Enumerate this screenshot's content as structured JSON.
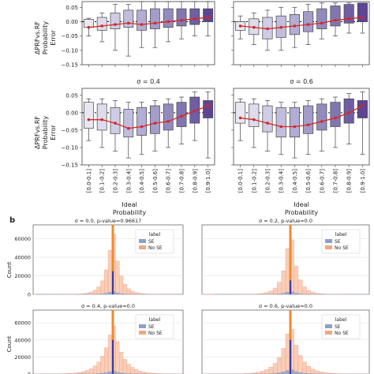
{
  "panel_a": {
    "ylabel_lines": [
      "ΔPRFvs.RF",
      "Probability",
      "Error"
    ],
    "xlabel_lines": [
      "Ideal",
      "Probability"
    ],
    "y_ticks": [
      "0.05",
      "0.00",
      "−0.05",
      "−0.10",
      "−0.15"
    ],
    "categories": [
      "[0.0-0.1]",
      "[0.1-0.2]",
      "[0.2-0.3]",
      "[0.3-0.4]",
      "[0.4-0.5]",
      "[0.5-0.6]",
      "[0.6-0.7]",
      "[0.7-0.8]",
      "[0.8-0.9]",
      "[0.9-1.0]"
    ],
    "box_colors": [
      "#e9e7f2",
      "#dddbec",
      "#cfcce5",
      "#c1bedd",
      "#b2add4",
      "#a39dc9",
      "#938bbe",
      "#8276b1",
      "#705ea3",
      "#5e4594"
    ],
    "median_color": "#d62728"
  },
  "panel_b": {
    "label": "b",
    "ylabel": "Count",
    "y_ticks": [
      "60000",
      "40000",
      "20000",
      "0"
    ],
    "legend": {
      "title": "label",
      "entries": [
        "SE",
        "No SE"
      ],
      "colors": [
        "#8da0cb",
        "#f4a582"
      ]
    }
  },
  "chart_data": [
    {
      "type": "box",
      "title": "",
      "position": "top-left",
      "categories": [
        "[0.0-0.1]",
        "[0.1-0.2]",
        "[0.2-0.3]",
        "[0.3-0.4]",
        "[0.4-0.5]",
        "[0.5-0.6]",
        "[0.6-0.7]",
        "[0.7-0.8]",
        "[0.8-0.9]",
        "[0.9-1.0]"
      ],
      "ylim": [
        -0.15,
        0.07
      ],
      "q1": [
        -0.02,
        -0.03,
        -0.025,
        -0.02,
        -0.03,
        -0.025,
        -0.02,
        -0.015,
        -0.01,
        0.0
      ],
      "q3": [
        0.008,
        0.015,
        0.03,
        0.04,
        0.04,
        0.045,
        0.045,
        0.045,
        0.045,
        0.045
      ],
      "whisker_low": [
        -0.05,
        -0.07,
        -0.1,
        -0.12,
        -0.09,
        -0.09,
        -0.07,
        -0.06,
        -0.05,
        -0.05
      ],
      "whisker_high": [
        0.012,
        0.03,
        0.06,
        0.06,
        0.07,
        0.07,
        0.07,
        0.07,
        0.07,
        0.07
      ],
      "median_line": [
        -0.02,
        -0.015,
        -0.01,
        -0.005,
        -0.01,
        -0.005,
        0.0,
        0.005,
        0.01,
        0.015
      ]
    },
    {
      "type": "box",
      "title": "",
      "position": "top-right",
      "categories": [
        "[0.0-0.1]",
        "[0.1-0.2]",
        "[0.2-0.3]",
        "[0.3-0.4]",
        "[0.4-0.5]",
        "[0.5-0.6]",
        "[0.6-0.7]",
        "[0.7-0.8]",
        "[0.8-0.9]",
        "[0.9-1.0]"
      ],
      "ylim": [
        -0.15,
        0.07
      ],
      "q1": [
        -0.03,
        -0.045,
        -0.06,
        -0.055,
        -0.045,
        -0.035,
        -0.025,
        -0.015,
        -0.005,
        0.0
      ],
      "q3": [
        0.0,
        0.01,
        0.015,
        0.02,
        0.025,
        0.035,
        0.045,
        0.055,
        0.06,
        0.065
      ],
      "whisker_low": [
        -0.06,
        -0.08,
        -0.1,
        -0.1,
        -0.09,
        -0.08,
        -0.06,
        -0.05,
        -0.04,
        -0.04
      ],
      "whisker_high": [
        0.02,
        0.03,
        0.04,
        0.05,
        0.05,
        0.06,
        0.065,
        0.065,
        0.065,
        0.065
      ],
      "median_line": [
        -0.015,
        -0.02,
        -0.025,
        -0.02,
        -0.015,
        -0.01,
        -0.005,
        0.005,
        0.01,
        0.015
      ]
    },
    {
      "type": "box",
      "title": "σ = 0.4",
      "position": "middle-left",
      "categories": [
        "[0.0-0.1]",
        "[0.1-0.2]",
        "[0.2-0.3]",
        "[0.3-0.4]",
        "[0.4-0.5]",
        "[0.5-0.6]",
        "[0.6-0.7]",
        "[0.7-0.8]",
        "[0.8-0.9]",
        "[0.9-1.0]"
      ],
      "ylim": [
        -0.15,
        0.07
      ],
      "q1": [
        -0.045,
        -0.05,
        -0.06,
        -0.07,
        -0.065,
        -0.06,
        -0.05,
        -0.04,
        -0.03,
        -0.015
      ],
      "q3": [
        0.03,
        0.025,
        0.015,
        0.01,
        0.015,
        0.02,
        0.025,
        0.03,
        0.045,
        0.035
      ],
      "whisker_low": [
        -0.08,
        -0.1,
        -0.11,
        -0.13,
        -0.12,
        -0.11,
        -0.1,
        -0.09,
        -0.08,
        -0.13
      ],
      "whisker_high": [
        0.04,
        0.04,
        0.035,
        0.03,
        0.03,
        0.035,
        0.04,
        0.045,
        0.06,
        0.06
      ],
      "median_line": [
        -0.02,
        -0.02,
        -0.03,
        -0.045,
        -0.04,
        -0.03,
        -0.025,
        -0.01,
        0.005,
        0.02
      ]
    },
    {
      "type": "box",
      "title": "σ = 0.6",
      "position": "middle-right",
      "categories": [
        "[0.0-0.1]",
        "[0.1-0.2]",
        "[0.2-0.3]",
        "[0.3-0.4]",
        "[0.4-0.5]",
        "[0.5-0.6]",
        "[0.6-0.7]",
        "[0.7-0.8]",
        "[0.8-0.9]",
        "[0.9-1.0]"
      ],
      "ylim": [
        -0.15,
        0.07
      ],
      "q1": [
        -0.03,
        -0.04,
        -0.055,
        -0.07,
        -0.07,
        -0.06,
        -0.05,
        -0.04,
        -0.03,
        -0.015
      ],
      "q3": [
        0.03,
        0.025,
        0.02,
        0.015,
        0.015,
        0.02,
        0.025,
        0.03,
        0.04,
        0.035
      ],
      "whisker_low": [
        -0.08,
        -0.1,
        -0.11,
        -0.12,
        -0.13,
        -0.12,
        -0.11,
        -0.1,
        -0.09,
        -0.12
      ],
      "whisker_high": [
        0.04,
        0.04,
        0.035,
        0.03,
        0.03,
        0.035,
        0.04,
        0.045,
        0.055,
        0.06
      ],
      "median_line": [
        -0.015,
        -0.02,
        -0.03,
        -0.04,
        -0.04,
        -0.035,
        -0.025,
        -0.015,
        0.0,
        0.02
      ]
    },
    {
      "type": "histogram",
      "title": "σ = 0.0, p-value=0.96617",
      "position": "lower-left",
      "ylim": [
        0,
        75000
      ],
      "peak_no_se": 75000,
      "peak_se": 4000,
      "spike_no_se": 75000,
      "spike_se": 25000
    },
    {
      "type": "histogram",
      "title": "σ = 0.2, p-value=0.0",
      "position": "lower-right",
      "ylim": [
        0,
        75000
      ],
      "peak_no_se": 75000,
      "peak_se": 4000,
      "spike_no_se": 75000,
      "spike_se": 15000
    },
    {
      "type": "histogram",
      "title": "σ = 0.4, p-value=0.0",
      "position": "bottom-left",
      "ylim": [
        0,
        75000
      ],
      "peak_no_se": 62000,
      "peak_se": 4000,
      "spike_no_se": 75000,
      "spike_se": 40000
    },
    {
      "type": "histogram",
      "title": "σ = 0.6, p-value=0.0",
      "position": "bottom-right",
      "ylim": [
        0,
        75000
      ],
      "peak_no_se": 62000,
      "peak_se": 6000,
      "spike_no_se": 75000,
      "spike_se": 40000
    }
  ]
}
